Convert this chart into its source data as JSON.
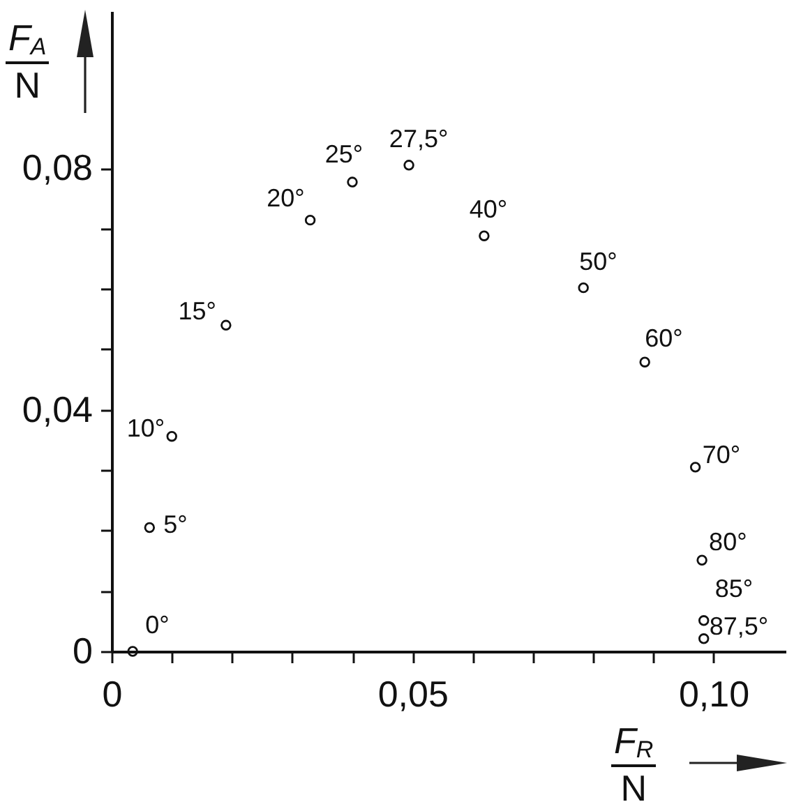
{
  "chart_data": {
    "type": "scatter",
    "xlabel": "F$_{R}$\nN",
    "ylabel": "F$_{A}$\nN",
    "x": [
      0.0035,
      0.0063,
      0.01,
      0.019,
      0.033,
      0.04,
      0.0494,
      0.0619,
      0.0784,
      0.0886,
      0.097,
      0.0981,
      0.0984,
      0.0984
    ],
    "values": [
      0.0,
      0.0205,
      0.0356,
      0.054,
      0.0714,
      0.0777,
      0.0805,
      0.0688,
      0.0602,
      0.0479,
      0.0305,
      0.0151,
      0.0051,
      0.0021
    ],
    "color": "#111111",
    "marker": "circle",
    "xlim": [
      0,
      0.112
    ],
    "ylim": [
      0,
      0.106
    ],
    "xticks": [
      0,
      {
        "value": 0.01,
        "label": null
      },
      {
        "value": 0.02,
        "label": null
      },
      {
        "value": 0.03,
        "label": null
      },
      {
        "value": 0.04,
        "label": null
      },
      {
        "value": 0.05,
        "label": "0,05"
      },
      {
        "value": 0.06,
        "label": null
      },
      {
        "value": 0.07,
        "label": null
      },
      {
        "value": 0.08,
        "label": null
      },
      {
        "value": 0.09,
        "label": null
      },
      {
        "value": 0.1,
        "label": "0,10"
      }
    ],
    "yticks": [
      0,
      {
        "value": 0.01,
        "label": null
      },
      {
        "value": 0.02,
        "label": null
      },
      {
        "value": 0.03,
        "label": null
      },
      {
        "value": 0.04,
        "label": "0,04"
      },
      {
        "value": 0.05,
        "label": null
      },
      {
        "value": 0.06,
        "label": null
      },
      {
        "value": 0.07,
        "label": null
      },
      {
        "value": 0.08,
        "label": "0,08"
      }
    ],
    "annotations": [
      {
        "text": "0°",
        "x": 0.0035,
        "y": 0.0
      },
      {
        "text": "5°",
        "x": 0.0063,
        "y": 0.0205
      },
      {
        "text": "10°",
        "x": 0.01,
        "y": 0.0356
      },
      {
        "text": "15°",
        "x": 0.019,
        "y": 0.054
      },
      {
        "text": "20°",
        "x": 0.033,
        "y": 0.0714
      },
      {
        "text": "25°",
        "x": 0.04,
        "y": 0.0777
      },
      {
        "text": "27,5°",
        "x": 0.0494,
        "y": 0.0805
      },
      {
        "text": "40°",
        "x": 0.0619,
        "y": 0.0688
      },
      {
        "text": "50°",
        "x": 0.0784,
        "y": 0.0602
      },
      {
        "text": "60°",
        "x": 0.0886,
        "y": 0.0479
      },
      {
        "text": "70°",
        "x": 0.097,
        "y": 0.0305
      },
      {
        "text": "80°",
        "x": 0.0981,
        "y": 0.0151
      },
      {
        "text": "85°",
        "x": 0.0984,
        "y": 0.0051
      },
      {
        "text": "87,5°",
        "x": 0.0984,
        "y": 0.0021
      }
    ]
  }
}
